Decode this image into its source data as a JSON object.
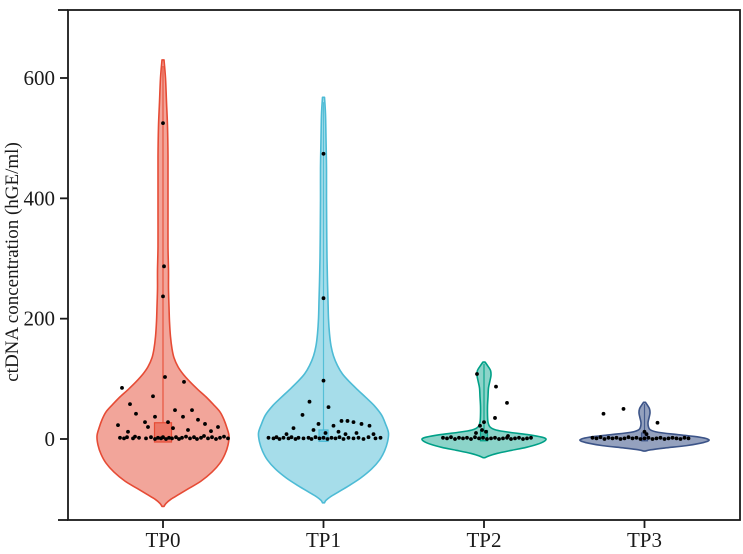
{
  "chart_data": {
    "type": "violin",
    "title": "",
    "xlabel": "",
    "ylabel": "ctDNA concentration (hGE/ml)",
    "y_ticks": [
      0,
      200,
      400,
      600
    ],
    "ylim": [
      -150,
      700
    ],
    "grid": false,
    "legend": "none",
    "categories": [
      "TP0",
      "TP1",
      "TP2",
      "TP3"
    ],
    "frame_color": "#1a1a1a",
    "point_color": "#000000",
    "series": [
      {
        "name": "TP0",
        "color": "#E64B35",
        "fill_opacity": 0.5,
        "violin_profile": [
          [
            630,
            1
          ],
          [
            600,
            2.5
          ],
          [
            560,
            3.5
          ],
          [
            520,
            4.5
          ],
          [
            470,
            5
          ],
          [
            420,
            5
          ],
          [
            370,
            5
          ],
          [
            320,
            5
          ],
          [
            280,
            5.5
          ],
          [
            250,
            5.5
          ],
          [
            220,
            6
          ],
          [
            195,
            6.5
          ],
          [
            170,
            7.5
          ],
          [
            150,
            9
          ],
          [
            135,
            11
          ],
          [
            120,
            15
          ],
          [
            108,
            20
          ],
          [
            95,
            27
          ],
          [
            82,
            35
          ],
          [
            70,
            43
          ],
          [
            58,
            50
          ],
          [
            45,
            57
          ],
          [
            32,
            61
          ],
          [
            18,
            64
          ],
          [
            5,
            66
          ],
          [
            -10,
            65
          ],
          [
            -25,
            62
          ],
          [
            -40,
            57
          ],
          [
            -55,
            49
          ],
          [
            -70,
            38
          ],
          [
            -82,
            26
          ],
          [
            -92,
            16
          ],
          [
            -100,
            8
          ],
          [
            -107,
            3
          ],
          [
            -112,
            1
          ]
        ],
        "box": {
          "top": 27,
          "bottom": -5,
          "width": 17
        },
        "whisker": {
          "top": 620,
          "bottom": 27
        },
        "points": [
          [
            0,
            525
          ],
          [
            1,
            287
          ],
          [
            0,
            237
          ],
          [
            2,
            103
          ],
          [
            21,
            95
          ],
          [
            -41,
            85
          ],
          [
            -33,
            58
          ],
          [
            -10,
            71
          ],
          [
            -27,
            42
          ],
          [
            12,
            48
          ],
          [
            29,
            48
          ],
          [
            -8,
            37
          ],
          [
            20,
            37
          ],
          [
            35,
            32
          ],
          [
            -18,
            28
          ],
          [
            5,
            28
          ],
          [
            42,
            25
          ],
          [
            -45,
            23
          ],
          [
            -15,
            20
          ],
          [
            10,
            18
          ],
          [
            25,
            15
          ],
          [
            48,
            13
          ],
          [
            -35,
            12
          ],
          [
            55,
            20
          ],
          [
            -43,
            2
          ],
          [
            -39,
            1
          ],
          [
            -36,
            3
          ],
          [
            -30,
            1
          ],
          [
            -28,
            4
          ],
          [
            -24,
            2
          ],
          [
            -17,
            1
          ],
          [
            -12,
            3
          ],
          [
            -8,
            0
          ],
          [
            -5,
            2
          ],
          [
            -2,
            1
          ],
          [
            0,
            3
          ],
          [
            3,
            0
          ],
          [
            6,
            2
          ],
          [
            9,
            1
          ],
          [
            13,
            3
          ],
          [
            16,
            0
          ],
          [
            19,
            2
          ],
          [
            23,
            4
          ],
          [
            27,
            1
          ],
          [
            31,
            3
          ],
          [
            34,
            0
          ],
          [
            38,
            2
          ],
          [
            41,
            5
          ],
          [
            45,
            1
          ],
          [
            49,
            3
          ],
          [
            53,
            0
          ],
          [
            57,
            2
          ],
          [
            61,
            4
          ],
          [
            65,
            1
          ]
        ]
      },
      {
        "name": "TP1",
        "color": "#4DBBD5",
        "fill_opacity": 0.5,
        "violin_profile": [
          [
            568,
            1
          ],
          [
            540,
            2
          ],
          [
            500,
            2.5
          ],
          [
            450,
            3
          ],
          [
            400,
            3
          ],
          [
            350,
            3.2
          ],
          [
            300,
            3.5
          ],
          [
            260,
            4
          ],
          [
            230,
            4.5
          ],
          [
            200,
            5
          ],
          [
            175,
            6
          ],
          [
            155,
            7.5
          ],
          [
            138,
            10
          ],
          [
            122,
            14
          ],
          [
            108,
            19
          ],
          [
            95,
            26
          ],
          [
            82,
            34
          ],
          [
            68,
            43
          ],
          [
            55,
            51
          ],
          [
            40,
            58
          ],
          [
            25,
            62
          ],
          [
            10,
            65
          ],
          [
            -5,
            64
          ],
          [
            -20,
            61
          ],
          [
            -35,
            56
          ],
          [
            -50,
            48
          ],
          [
            -65,
            37
          ],
          [
            -78,
            25
          ],
          [
            -88,
            15
          ],
          [
            -96,
            7
          ],
          [
            -102,
            2.5
          ],
          [
            -106,
            1
          ]
        ],
        "box": {
          "top": 15,
          "bottom": -4,
          "width": 9
        },
        "whisker": {
          "top": 560,
          "bottom": 15
        },
        "points": [
          [
            0,
            474
          ],
          [
            0,
            234
          ],
          [
            0,
            97
          ],
          [
            -14,
            62
          ],
          [
            5,
            53
          ],
          [
            -21,
            40
          ],
          [
            18,
            30
          ],
          [
            24,
            30
          ],
          [
            30,
            28
          ],
          [
            -5,
            25
          ],
          [
            10,
            22
          ],
          [
            38,
            25
          ],
          [
            46,
            22
          ],
          [
            -30,
            18
          ],
          [
            -10,
            15
          ],
          [
            15,
            12
          ],
          [
            2,
            10
          ],
          [
            -37,
            8
          ],
          [
            22,
            8
          ],
          [
            33,
            10
          ],
          [
            50,
            8
          ],
          [
            -55,
            2
          ],
          [
            -50,
            1
          ],
          [
            -47,
            3
          ],
          [
            -44,
            0
          ],
          [
            -40,
            2
          ],
          [
            -35,
            1
          ],
          [
            -32,
            3
          ],
          [
            -28,
            0
          ],
          [
            -25,
            2
          ],
          [
            -20,
            1
          ],
          [
            -15,
            2
          ],
          [
            -12,
            0
          ],
          [
            -8,
            3
          ],
          [
            -4,
            1
          ],
          [
            0,
            2
          ],
          [
            4,
            0
          ],
          [
            8,
            2
          ],
          [
            12,
            1
          ],
          [
            16,
            3
          ],
          [
            20,
            0
          ],
          [
            25,
            2
          ],
          [
            30,
            1
          ],
          [
            35,
            2
          ],
          [
            40,
            0
          ],
          [
            45,
            3
          ],
          [
            52,
            1
          ],
          [
            57,
            2
          ]
        ]
      },
      {
        "name": "TP2",
        "color": "#00A087",
        "fill_opacity": 0.45,
        "violin_profile": [
          [
            128,
            1
          ],
          [
            122,
            3.5
          ],
          [
            114,
            6.5
          ],
          [
            106,
            7
          ],
          [
            97,
            6
          ],
          [
            85,
            4.5
          ],
          [
            70,
            4
          ],
          [
            55,
            3.5
          ],
          [
            40,
            3.5
          ],
          [
            28,
            4
          ],
          [
            20,
            6
          ],
          [
            15,
            12
          ],
          [
            11,
            26
          ],
          [
            7,
            45
          ],
          [
            3,
            58
          ],
          [
            0,
            62
          ],
          [
            -4,
            60
          ],
          [
            -9,
            53
          ],
          [
            -14,
            42
          ],
          [
            -19,
            27
          ],
          [
            -24,
            13
          ],
          [
            -28,
            5
          ],
          [
            -31,
            1
          ]
        ],
        "box": {
          "top": 14,
          "bottom": -3,
          "width": 7
        },
        "whisker": {
          "top": 125,
          "bottom": 14
        },
        "points": [
          [
            -7,
            108
          ],
          [
            12,
            87
          ],
          [
            23,
            60
          ],
          [
            11,
            35
          ],
          [
            0,
            28
          ],
          [
            -4,
            22
          ],
          [
            -2,
            15
          ],
          [
            2,
            12
          ],
          [
            -8,
            10
          ],
          [
            -41,
            2
          ],
          [
            -37,
            1
          ],
          [
            -33,
            3
          ],
          [
            -29,
            0
          ],
          [
            -25,
            2
          ],
          [
            -21,
            1
          ],
          [
            -17,
            2
          ],
          [
            -13,
            0
          ],
          [
            -9,
            3
          ],
          [
            -5,
            1
          ],
          [
            -1,
            2
          ],
          [
            3,
            0
          ],
          [
            7,
            1
          ],
          [
            11,
            2
          ],
          [
            15,
            0
          ],
          [
            19,
            1
          ],
          [
            23,
            2
          ],
          [
            27,
            0
          ],
          [
            31,
            1
          ],
          [
            35,
            2
          ],
          [
            39,
            0
          ],
          [
            43,
            1
          ],
          [
            47,
            2
          ],
          [
            24,
            5
          ]
        ]
      },
      {
        "name": "TP3",
        "color": "#3C5488",
        "fill_opacity": 0.55,
        "violin_profile": [
          [
            61,
            1
          ],
          [
            56,
            3
          ],
          [
            50,
            5
          ],
          [
            43,
            5.5
          ],
          [
            35,
            4.5
          ],
          [
            27,
            3.5
          ],
          [
            20,
            4
          ],
          [
            15,
            6
          ],
          [
            11,
            14
          ],
          [
            7,
            35
          ],
          [
            3,
            55
          ],
          [
            0,
            63
          ],
          [
            -3,
            64
          ],
          [
            -7,
            56
          ],
          [
            -11,
            42
          ],
          [
            -15,
            20
          ],
          [
            -18,
            6
          ],
          [
            -20,
            1
          ]
        ],
        "box": {
          "top": 10,
          "bottom": -3,
          "width": 6
        },
        "whisker": {
          "top": 58,
          "bottom": 10
        },
        "points": [
          [
            -41,
            42
          ],
          [
            -21,
            50
          ],
          [
            13,
            27
          ],
          [
            0,
            12
          ],
          [
            2,
            8
          ],
          [
            -52,
            2
          ],
          [
            -48,
            1
          ],
          [
            -44,
            3
          ],
          [
            -40,
            0
          ],
          [
            -36,
            2
          ],
          [
            -32,
            1
          ],
          [
            -28,
            2
          ],
          [
            -24,
            0
          ],
          [
            -20,
            1
          ],
          [
            -16,
            3
          ],
          [
            -12,
            1
          ],
          [
            -8,
            2
          ],
          [
            -4,
            0
          ],
          [
            0,
            1
          ],
          [
            4,
            2
          ],
          [
            8,
            0
          ],
          [
            12,
            1
          ],
          [
            16,
            2
          ],
          [
            20,
            0
          ],
          [
            24,
            1
          ],
          [
            28,
            2
          ],
          [
            32,
            1
          ],
          [
            36,
            0
          ],
          [
            40,
            2
          ],
          [
            44,
            1
          ]
        ]
      }
    ]
  }
}
